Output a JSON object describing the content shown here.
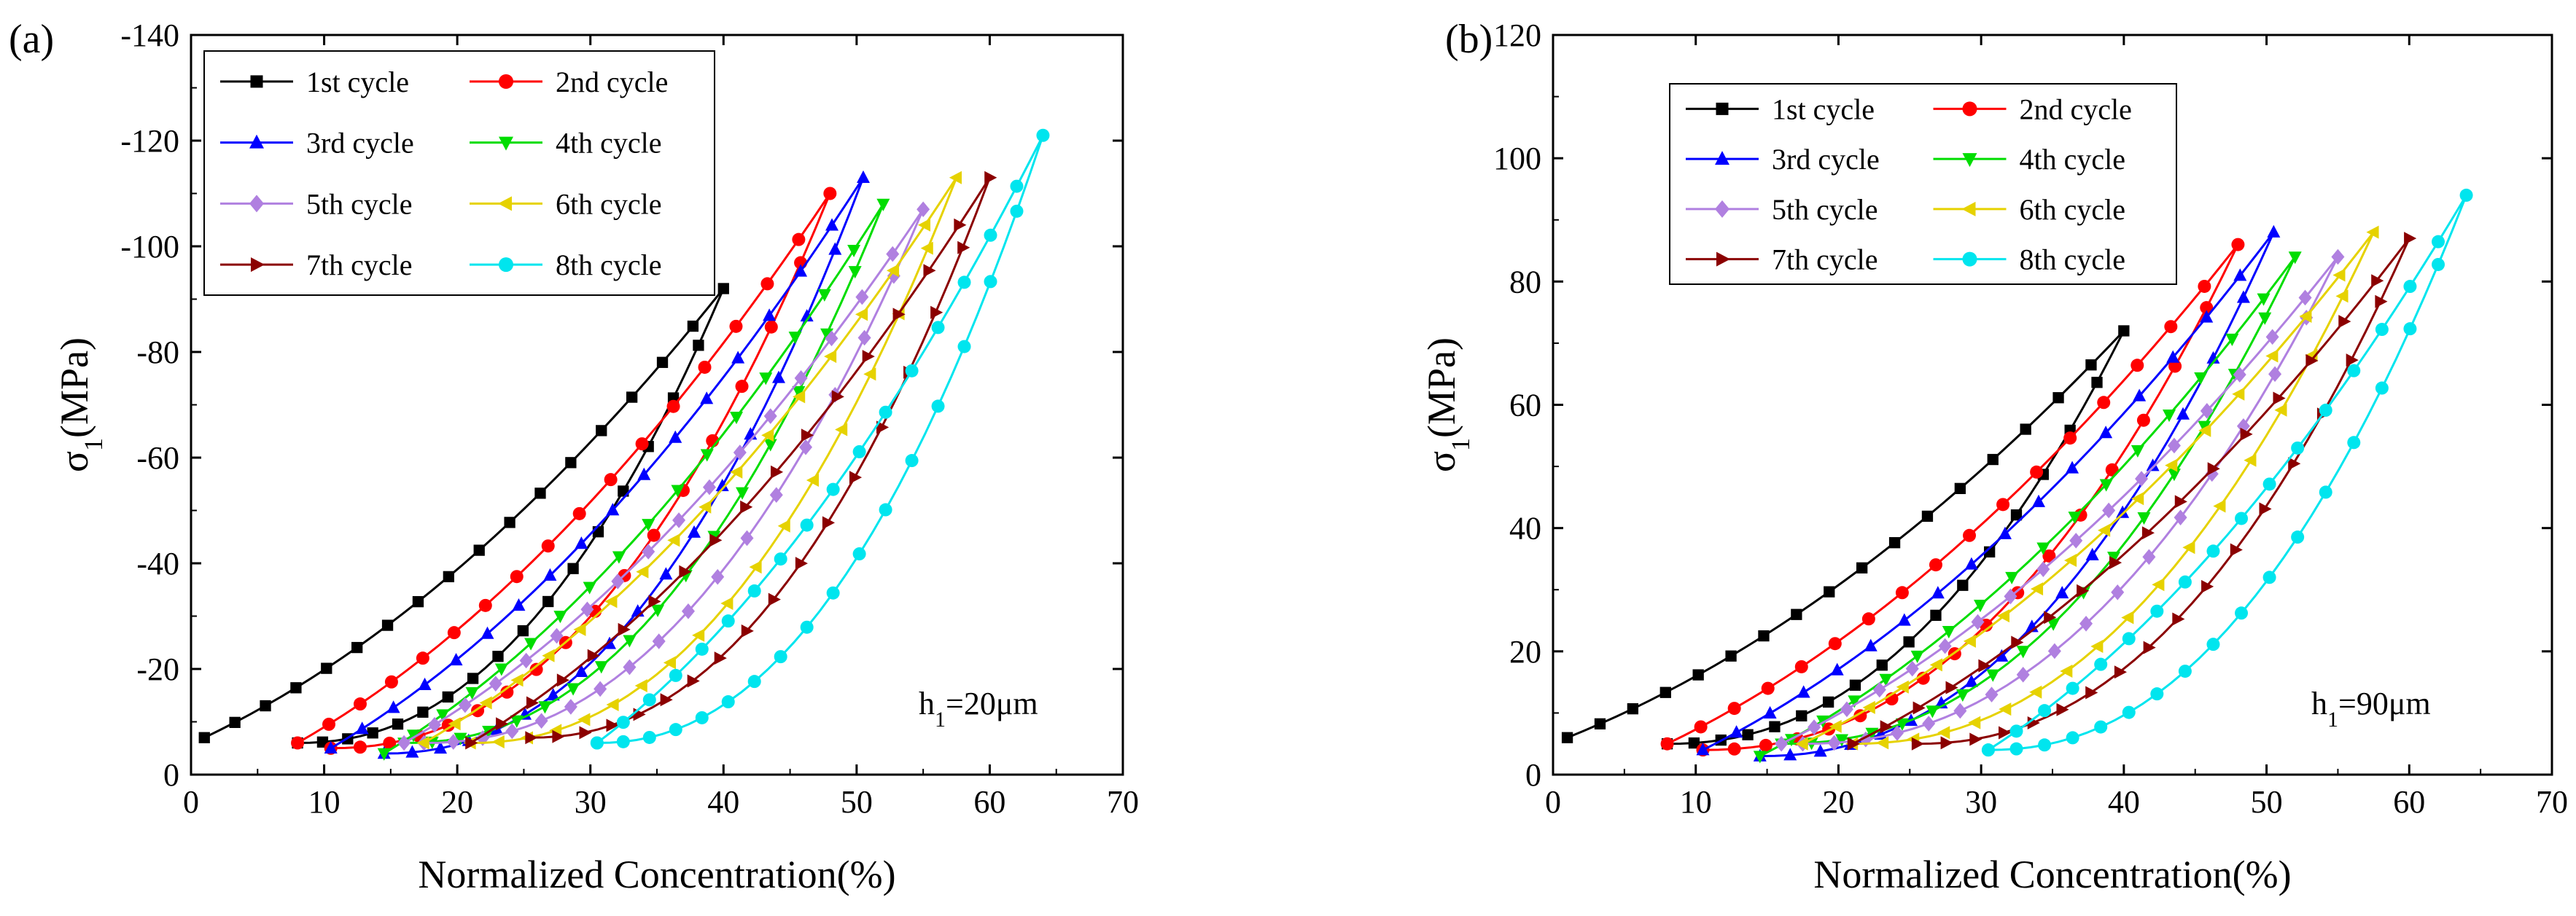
{
  "chart_data": [
    {
      "panel": "(a)",
      "type": "line",
      "xlabel": "Normalized Concentration(%)",
      "ylabel": "σ1(MPa)",
      "annotation": "h1=20μm",
      "xlim": [
        0,
        70
      ],
      "ylim": [
        0,
        -140
      ],
      "xticks": [
        0,
        10,
        20,
        30,
        40,
        50,
        60,
        70
      ],
      "yticks": [
        0,
        -20,
        -40,
        -60,
        -80,
        -100,
        -120,
        -140
      ],
      "legend_position": "top-left",
      "series": [
        {
          "name": "1st cycle",
          "color": "#000000",
          "marker": "square",
          "start": [
            1,
            -7
          ],
          "peak": [
            40,
            -92
          ],
          "start2": [
            8,
            -6
          ]
        },
        {
          "name": "2nd cycle",
          "color": "#ff0000",
          "marker": "circle",
          "start": [
            8,
            -6
          ],
          "peak": [
            48,
            -110
          ],
          "start2": [
            10.5,
            -5
          ]
        },
        {
          "name": "3rd cycle",
          "color": "#0000ff",
          "marker": "triangle-up",
          "start": [
            10.5,
            -5
          ],
          "peak": [
            50.5,
            -113
          ],
          "start2": [
            14.5,
            -4
          ]
        },
        {
          "name": "4th cycle",
          "color": "#00dd00",
          "marker": "triangle-down",
          "start": [
            14.5,
            -4
          ],
          "peak": [
            52,
            -108
          ],
          "start2": [
            16,
            -6
          ]
        },
        {
          "name": "5th cycle",
          "color": "#b080e0",
          "marker": "diamond",
          "start": [
            16,
            -6
          ],
          "peak": [
            55,
            -107
          ],
          "start2": [
            17.5,
            -6
          ]
        },
        {
          "name": "6th cycle",
          "color": "#e6d200",
          "marker": "triangle-left",
          "start": [
            17.5,
            -6
          ],
          "peak": [
            57.5,
            -113
          ],
          "start2": [
            21,
            -6
          ]
        },
        {
          "name": "7th cycle",
          "color": "#8b0000",
          "marker": "triangle-right",
          "start": [
            21,
            -6
          ],
          "peak": [
            60,
            -113
          ],
          "start2": [
            25.5,
            -7
          ]
        },
        {
          "name": "8th cycle",
          "color": "#00e5ee",
          "marker": "circle",
          "start": [
            30.5,
            -6
          ],
          "peak": [
            64,
            -121
          ],
          "start2": [
            30.5,
            -6
          ]
        }
      ]
    },
    {
      "panel": "(b)",
      "type": "line",
      "xlabel": "Normalized Concentration(%)",
      "ylabel": "σ1(MPa)",
      "annotation": "h1=90μm",
      "xlim": [
        0,
        70
      ],
      "ylim": [
        0,
        120
      ],
      "xticks": [
        0,
        10,
        20,
        30,
        40,
        50,
        60,
        70
      ],
      "yticks": [
        0,
        20,
        40,
        60,
        80,
        100,
        120
      ],
      "legend_position": "top-left",
      "series": [
        {
          "name": "1st cycle",
          "color": "#000000",
          "marker": "square",
          "start": [
            1,
            6
          ],
          "peak": [
            40,
            72
          ],
          "start2": [
            8,
            5
          ]
        },
        {
          "name": "2nd cycle",
          "color": "#ff0000",
          "marker": "circle",
          "start": [
            8,
            5
          ],
          "peak": [
            48,
            86
          ],
          "start2": [
            10.5,
            4
          ]
        },
        {
          "name": "3rd cycle",
          "color": "#0000ff",
          "marker": "triangle-up",
          "start": [
            10.5,
            4
          ],
          "peak": [
            50.5,
            88
          ],
          "start2": [
            14.5,
            3
          ]
        },
        {
          "name": "4th cycle",
          "color": "#00dd00",
          "marker": "triangle-down",
          "start": [
            14.5,
            3
          ],
          "peak": [
            52,
            84
          ],
          "start2": [
            16,
            5
          ]
        },
        {
          "name": "5th cycle",
          "color": "#b080e0",
          "marker": "diamond",
          "start": [
            16,
            5
          ],
          "peak": [
            55,
            84
          ],
          "start2": [
            17.5,
            5
          ]
        },
        {
          "name": "6th cycle",
          "color": "#e6d200",
          "marker": "triangle-left",
          "start": [
            17.5,
            5
          ],
          "peak": [
            57.5,
            88
          ],
          "start2": [
            21,
            5
          ]
        },
        {
          "name": "7th cycle",
          "color": "#8b0000",
          "marker": "triangle-right",
          "start": [
            21,
            5
          ],
          "peak": [
            60,
            87
          ],
          "start2": [
            25.5,
            5
          ]
        },
        {
          "name": "8th cycle",
          "color": "#00e5ee",
          "marker": "circle",
          "start": [
            30.5,
            4
          ],
          "peak": [
            64,
            94
          ],
          "start2": [
            30.5,
            4
          ]
        }
      ]
    }
  ]
}
